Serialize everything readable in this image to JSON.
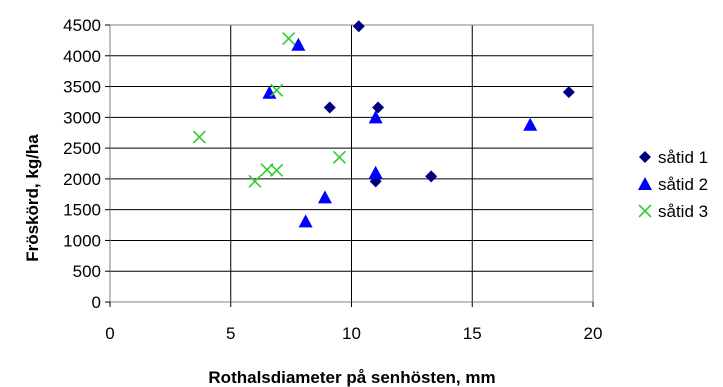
{
  "chart_data": {
    "type": "scatter",
    "xlabel": "Rothalsdiameter på senhösten, mm",
    "ylabel": "Fröskörd, kg/ha",
    "xlim": [
      0,
      20
    ],
    "ylim": [
      0,
      4500
    ],
    "x_ticks": [
      "0",
      "5",
      "10",
      "15",
      "20"
    ],
    "y_ticks": [
      "0",
      "500",
      "1000",
      "1500",
      "2000",
      "2500",
      "3000",
      "3500",
      "4000",
      "4500"
    ],
    "grid": "vertical and horizontal lines at major ticks",
    "legend_position": "right",
    "series": [
      {
        "name": "såtid 1",
        "marker": "diamond",
        "color": "#000080",
        "points": [
          [
            10.3,
            4480
          ],
          [
            9.1,
            3160
          ],
          [
            11.1,
            3160
          ],
          [
            11.0,
            1960
          ],
          [
            13.3,
            2040
          ],
          [
            19.0,
            3410
          ]
        ]
      },
      {
        "name": "såtid 2",
        "marker": "triangle",
        "color": "#0000ff",
        "points": [
          [
            7.8,
            4180
          ],
          [
            6.6,
            3400
          ],
          [
            11.0,
            3000
          ],
          [
            11.0,
            2100
          ],
          [
            8.1,
            1310
          ],
          [
            8.9,
            1700
          ],
          [
            17.4,
            2880
          ]
        ]
      },
      {
        "name": "såtid 3",
        "marker": "cross",
        "color": "#33cc33",
        "points": [
          [
            7.4,
            4280
          ],
          [
            6.9,
            3440
          ],
          [
            3.7,
            2680
          ],
          [
            6.5,
            2150
          ],
          [
            6.9,
            2140
          ],
          [
            6.0,
            1960
          ],
          [
            9.5,
            2350
          ]
        ]
      }
    ]
  }
}
